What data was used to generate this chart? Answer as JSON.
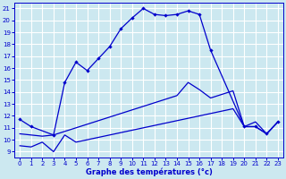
{
  "bg_color": "#cce8f0",
  "grid_color": "#ffffff",
  "line_color": "#0000cc",
  "xlabel": "Graphe des températures (°c)",
  "xlim": [
    -0.5,
    23.5
  ],
  "ylim": [
    8.5,
    21.5
  ],
  "xticks": [
    0,
    1,
    2,
    3,
    4,
    5,
    6,
    7,
    8,
    9,
    10,
    11,
    12,
    13,
    14,
    15,
    16,
    17,
    18,
    19,
    20,
    21,
    22,
    23
  ],
  "yticks": [
    9,
    10,
    11,
    12,
    13,
    14,
    15,
    16,
    17,
    18,
    19,
    20,
    21
  ],
  "max_x": [
    0,
    1,
    3,
    4,
    5,
    6,
    7,
    8,
    9,
    10,
    11,
    12,
    13,
    14,
    15,
    16,
    17,
    20,
    21,
    22,
    23
  ],
  "max_y": [
    11.7,
    11.1,
    10.4,
    14.8,
    16.5,
    15.8,
    16.8,
    17.8,
    19.3,
    20.2,
    21.0,
    20.5,
    20.4,
    20.5,
    20.8,
    20.5,
    17.5,
    11.1,
    11.1,
    10.5,
    11.5
  ],
  "avg_x": [
    0,
    1,
    2,
    3,
    4,
    5,
    6,
    7,
    8,
    9,
    10,
    11,
    12,
    13,
    14,
    15,
    16,
    17,
    18,
    19,
    20,
    21,
    22,
    23
  ],
  "avg_y": [
    10.5,
    10.4,
    10.3,
    10.4,
    10.7,
    11.0,
    11.3,
    11.6,
    11.9,
    12.2,
    12.5,
    12.8,
    13.1,
    13.4,
    13.7,
    14.8,
    14.2,
    13.5,
    13.8,
    14.1,
    11.1,
    11.1,
    10.5,
    11.5
  ],
  "min_x": [
    0,
    1,
    2,
    3,
    4,
    5,
    6,
    7,
    8,
    9,
    10,
    11,
    12,
    13,
    14,
    15,
    16,
    17,
    18,
    19,
    20,
    21,
    22,
    23
  ],
  "min_y": [
    9.5,
    9.4,
    9.8,
    9.0,
    10.4,
    9.8,
    10.0,
    10.2,
    10.4,
    10.6,
    10.8,
    11.0,
    11.2,
    11.4,
    11.6,
    11.8,
    12.0,
    12.2,
    12.4,
    12.6,
    11.1,
    11.5,
    10.5,
    11.5
  ]
}
